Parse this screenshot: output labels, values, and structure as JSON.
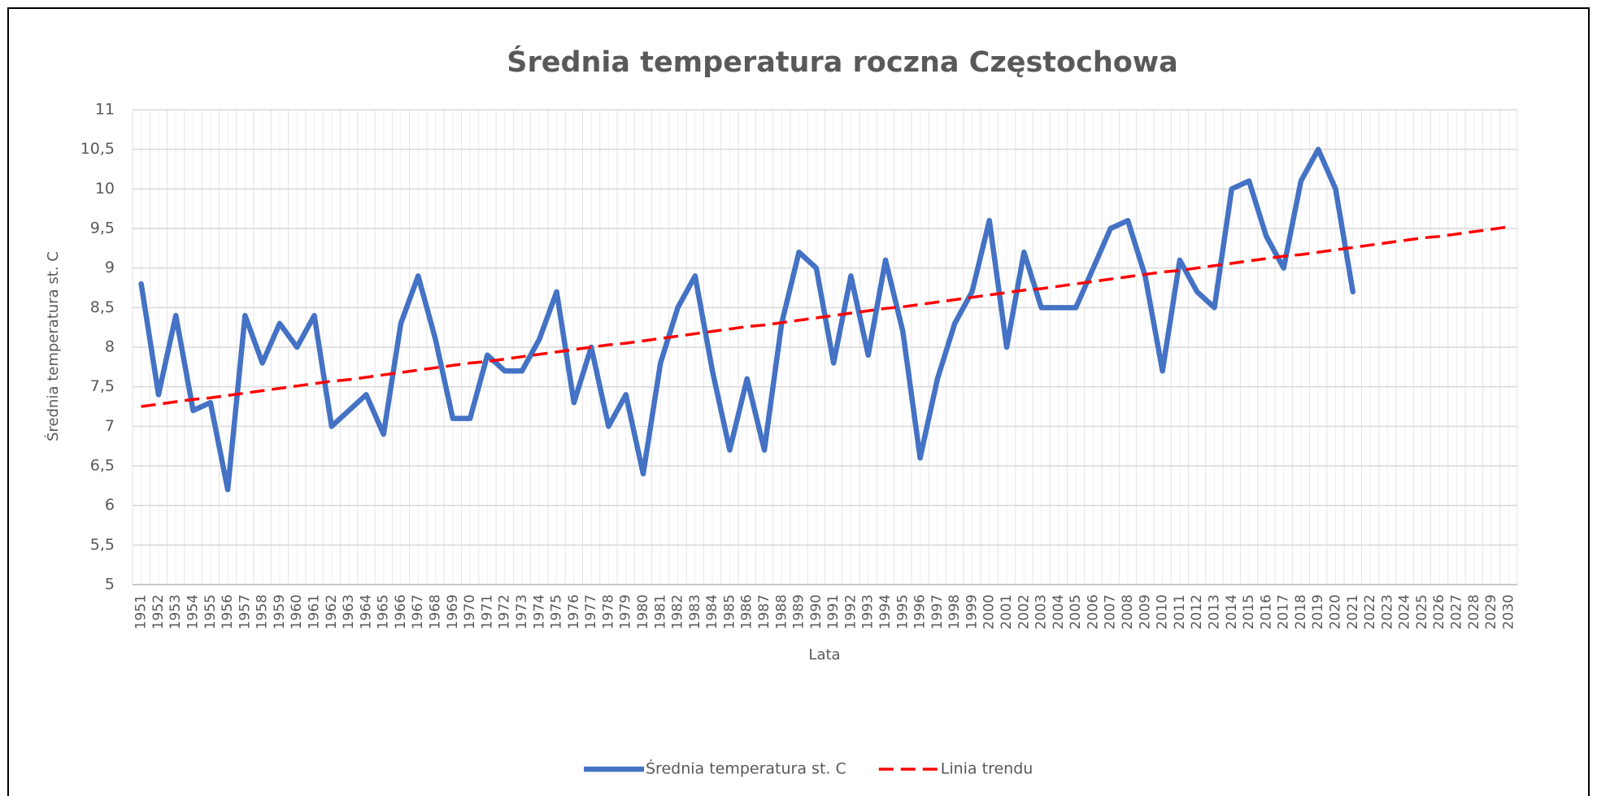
{
  "chart_data": {
    "type": "line",
    "title": "Średnia temperatura roczna Częstochowa",
    "xlabel": "Lata",
    "ylabel": "Średnia temperatura st. C",
    "categories": [
      "1951",
      "1952",
      "1953",
      "1954",
      "1955",
      "1956",
      "1957",
      "1958",
      "1959",
      "1960",
      "1961",
      "1962",
      "1963",
      "1964",
      "1965",
      "1966",
      "1967",
      "1968",
      "1969",
      "1970",
      "1971",
      "1972",
      "1973",
      "1974",
      "1975",
      "1976",
      "1977",
      "1978",
      "1979",
      "1980",
      "1981",
      "1982",
      "1983",
      "1984",
      "1985",
      "1986",
      "1987",
      "1988",
      "1989",
      "1990",
      "1991",
      "1992",
      "1993",
      "1994",
      "1995",
      "1996",
      "1997",
      "1998",
      "1999",
      "2000",
      "2001",
      "2002",
      "2003",
      "2004",
      "2005",
      "2006",
      "2007",
      "2008",
      "2009",
      "2010",
      "2011",
      "2012",
      "2013",
      "2014",
      "2015",
      "2016",
      "2017",
      "2018",
      "2019",
      "2020",
      "2021",
      "2022",
      "2023",
      "2024",
      "2025",
      "2026",
      "2027",
      "2028",
      "2029",
      "2030"
    ],
    "series": [
      {
        "name": "Średnia temperatura st. C",
        "color": "#4472c4",
        "style": "solid",
        "values": [
          8.8,
          7.4,
          8.4,
          7.2,
          7.3,
          6.2,
          8.4,
          7.8,
          8.3,
          8.0,
          8.4,
          7.0,
          7.2,
          7.4,
          6.9,
          8.3,
          8.9,
          8.1,
          7.1,
          7.1,
          7.9,
          7.7,
          7.7,
          8.1,
          8.7,
          7.3,
          8.0,
          7.0,
          7.4,
          6.4,
          7.8,
          8.5,
          8.9,
          7.7,
          6.7,
          7.6,
          6.7,
          8.3,
          9.2,
          9.0,
          7.8,
          8.9,
          7.9,
          9.1,
          8.2,
          6.6,
          7.6,
          8.3,
          8.7,
          9.6,
          8.0,
          9.2,
          8.5,
          8.5,
          8.5,
          9.0,
          9.5,
          9.6,
          8.9,
          7.7,
          9.1,
          8.7,
          8.5,
          10.0,
          10.1,
          9.4,
          9.0,
          10.1,
          10.5,
          10.0,
          8.7,
          null,
          null,
          null,
          null,
          null,
          null,
          null,
          null,
          null
        ]
      },
      {
        "name": "Linia trendu",
        "color": "#ff0000",
        "style": "dashed",
        "values": [
          7.25,
          7.28,
          7.31,
          7.34,
          7.36,
          7.39,
          7.42,
          7.45,
          7.48,
          7.51,
          7.54,
          7.57,
          7.59,
          7.62,
          7.65,
          7.68,
          7.71,
          7.74,
          7.77,
          7.8,
          7.82,
          7.85,
          7.88,
          7.91,
          7.94,
          7.97,
          8.0,
          8.03,
          8.05,
          8.08,
          8.11,
          8.14,
          8.17,
          8.2,
          8.23,
          8.26,
          8.28,
          8.31,
          8.34,
          8.37,
          8.4,
          8.43,
          8.46,
          8.49,
          8.51,
          8.54,
          8.57,
          8.6,
          8.63,
          8.66,
          8.69,
          8.72,
          8.74,
          8.77,
          8.8,
          8.83,
          8.86,
          8.89,
          8.92,
          8.95,
          8.97,
          9.0,
          9.03,
          9.06,
          9.09,
          9.12,
          9.15,
          9.17,
          9.2,
          9.23,
          9.26,
          9.29,
          9.32,
          9.35,
          9.38,
          9.4,
          9.43,
          9.46,
          9.49,
          9.52
        ]
      }
    ],
    "ylim": [
      5,
      11
    ],
    "yticks": [
      5,
      {
        "value": 5.5,
        "label": "5,5"
      },
      6,
      {
        "value": 6.5,
        "label": "6,5"
      },
      7,
      {
        "value": 7.5,
        "label": "7,5"
      },
      8,
      {
        "value": 8.5,
        "label": "8,5"
      },
      9,
      {
        "value": 9.5,
        "label": "9,5"
      },
      10,
      {
        "value": 10.5,
        "label": "10,5"
      },
      11
    ],
    "grid": true,
    "xgrid": true,
    "legend": "bottom"
  }
}
